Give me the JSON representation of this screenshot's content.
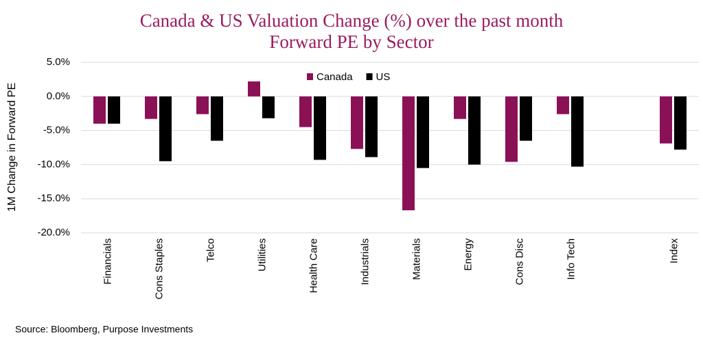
{
  "chart_data": {
    "type": "bar",
    "title": "Canada & US Valuation Change (%) over the past month",
    "subtitle": "Forward PE by Sector",
    "y_label": "1M Change in Forward PE",
    "source": "Source: Bloomberg, Purpose Investments",
    "categories": [
      "Financials",
      "Cons Staples",
      "Telco",
      "Utilities",
      "Health Care",
      "Industrials",
      "Materials",
      "Energy",
      "Cons Disc",
      "Info Tech",
      null,
      "Index"
    ],
    "series": [
      {
        "name": "Canada",
        "color": "#8b1157",
        "values": [
          -4.0,
          -3.3,
          -2.6,
          2.2,
          -4.5,
          -7.7,
          -16.7,
          -3.3,
          -9.6,
          -2.6,
          null,
          -6.9
        ]
      },
      {
        "name": "US",
        "color": "#000000",
        "values": [
          -4.0,
          -9.5,
          -6.5,
          -3.2,
          -9.3,
          -8.9,
          -10.5,
          -10.0,
          -6.5,
          -10.3,
          null,
          -7.8
        ]
      }
    ],
    "ylim": [
      -20,
      5
    ],
    "yticks": [
      {
        "value": 5,
        "label": "5.0%"
      },
      {
        "value": 0,
        "label": "0.0%"
      },
      {
        "value": -5,
        "label": "-5.0%"
      },
      {
        "value": -10,
        "label": "-10.0%"
      },
      {
        "value": -15,
        "label": "-15.0%"
      },
      {
        "value": -20,
        "label": "-20.0%"
      }
    ],
    "grid": true,
    "legend": "top"
  }
}
